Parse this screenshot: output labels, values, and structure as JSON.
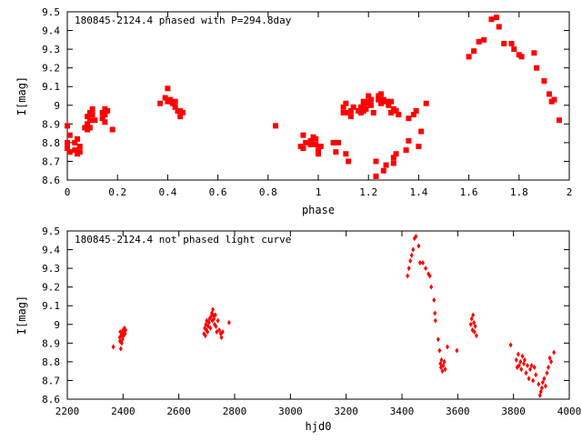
{
  "chart_data": [
    {
      "type": "scatter",
      "title": "180845-2124.4 phased with P=294.8day",
      "xlabel": "phase",
      "ylabel": "I[mag]",
      "xlim": [
        0,
        2
      ],
      "ylim": [
        9.5,
        8.6
      ],
      "y_inverted": true,
      "xticks": [
        0,
        0.2,
        0.4,
        0.6,
        0.8,
        1,
        1.2,
        1.4,
        1.6,
        1.8,
        2
      ],
      "xtick_labels": [
        "0",
        "0.2",
        "0.4",
        "0.6",
        "0.8",
        "1",
        "1.2",
        "1.4",
        "1.6",
        "1.8",
        "2"
      ],
      "yticks": [
        8.6,
        8.7,
        8.8,
        8.9,
        9.0,
        9.1,
        9.2,
        9.3,
        9.4,
        9.5
      ],
      "ytick_labels": [
        "8.6",
        "8.7",
        "8.8",
        "8.9",
        "9",
        "9.1",
        "9.2",
        "9.3",
        "9.4",
        "9.5"
      ],
      "grid": false,
      "marker_color": "#ff0000",
      "points": [
        [
          0.0,
          8.77
        ],
        [
          0.0,
          8.8
        ],
        [
          0.01,
          8.84
        ],
        [
          0.0,
          8.89
        ],
        [
          0.01,
          8.75
        ],
        [
          0.03,
          8.76
        ],
        [
          0.03,
          8.8
        ],
        [
          0.04,
          8.82
        ],
        [
          0.04,
          8.74
        ],
        [
          0.05,
          8.78
        ],
        [
          0.05,
          8.75
        ],
        [
          0.07,
          8.88
        ],
        [
          0.08,
          8.87
        ],
        [
          0.08,
          8.9
        ],
        [
          0.08,
          8.94
        ],
        [
          0.09,
          8.96
        ],
        [
          0.09,
          8.92
        ],
        [
          0.1,
          8.95
        ],
        [
          0.1,
          8.98
        ],
        [
          0.09,
          8.88
        ],
        [
          0.11,
          8.92
        ],
        [
          0.14,
          8.93
        ],
        [
          0.14,
          8.96
        ],
        [
          0.15,
          8.98
        ],
        [
          0.15,
          8.95
        ],
        [
          0.16,
          8.97
        ],
        [
          0.15,
          8.91
        ],
        [
          0.18,
          8.87
        ],
        [
          0.37,
          9.01
        ],
        [
          0.39,
          9.04
        ],
        [
          0.4,
          9.02
        ],
        [
          0.4,
          9.09
        ],
        [
          0.41,
          9.03
        ],
        [
          0.42,
          9.01
        ],
        [
          0.43,
          9.02
        ],
        [
          0.43,
          8.99
        ],
        [
          0.44,
          8.97
        ],
        [
          0.45,
          8.94
        ],
        [
          0.45,
          8.97
        ],
        [
          0.46,
          8.96
        ],
        [
          0.83,
          8.89
        ],
        [
          0.93,
          8.78
        ],
        [
          0.94,
          8.84
        ],
        [
          0.94,
          8.77
        ],
        [
          0.95,
          8.8
        ],
        [
          0.97,
          8.81
        ],
        [
          0.97,
          8.79
        ],
        [
          0.98,
          8.83
        ],
        [
          0.99,
          8.82
        ],
        [
          0.99,
          8.79
        ],
        [
          1.0,
          8.76
        ],
        [
          1.0,
          8.74
        ],
        [
          1.01,
          8.78
        ],
        [
          1.06,
          8.8
        ],
        [
          1.07,
          8.75
        ],
        [
          1.08,
          8.8
        ],
        [
          1.1,
          8.96
        ],
        [
          1.1,
          8.99
        ],
        [
          1.11,
          9.01
        ],
        [
          1.11,
          8.96
        ],
        [
          1.11,
          8.74
        ],
        [
          1.12,
          8.7
        ],
        [
          1.13,
          8.97
        ],
        [
          1.13,
          8.94
        ],
        [
          1.14,
          8.99
        ],
        [
          1.16,
          8.97
        ],
        [
          1.17,
          8.99
        ],
        [
          1.17,
          8.96
        ],
        [
          1.18,
          9.0
        ],
        [
          1.18,
          9.02
        ],
        [
          1.18,
          8.97
        ],
        [
          1.19,
          9.01
        ],
        [
          1.19,
          8.98
        ],
        [
          1.2,
          9.02
        ],
        [
          1.2,
          9.05
        ],
        [
          1.21,
          9.0
        ],
        [
          1.21,
          9.03
        ],
        [
          1.22,
          8.96
        ],
        [
          1.23,
          8.7
        ],
        [
          1.23,
          8.62
        ],
        [
          1.24,
          9.03
        ],
        [
          1.24,
          9.05
        ],
        [
          1.25,
          9.01
        ],
        [
          1.25,
          9.06
        ],
        [
          1.26,
          9.03
        ],
        [
          1.26,
          8.65
        ],
        [
          1.27,
          8.68
        ],
        [
          1.27,
          9.02
        ],
        [
          1.28,
          9.0
        ],
        [
          1.29,
          8.96
        ],
        [
          1.29,
          9.02
        ],
        [
          1.3,
          8.98
        ],
        [
          1.3,
          8.72
        ],
        [
          1.3,
          8.69
        ],
        [
          1.31,
          8.97
        ],
        [
          1.31,
          8.74
        ],
        [
          1.32,
          8.95
        ],
        [
          1.35,
          8.76
        ],
        [
          1.36,
          8.81
        ],
        [
          1.36,
          8.93
        ],
        [
          1.38,
          8.95
        ],
        [
          1.39,
          8.97
        ],
        [
          1.4,
          8.78
        ],
        [
          1.41,
          8.86
        ],
        [
          1.43,
          9.01
        ],
        [
          1.6,
          9.26
        ],
        [
          1.62,
          9.29
        ],
        [
          1.64,
          9.34
        ],
        [
          1.66,
          9.35
        ],
        [
          1.69,
          9.46
        ],
        [
          1.71,
          9.47
        ],
        [
          1.72,
          9.42
        ],
        [
          1.74,
          9.33
        ],
        [
          1.77,
          9.33
        ],
        [
          1.78,
          9.3
        ],
        [
          1.8,
          9.27
        ],
        [
          1.81,
          9.26
        ],
        [
          1.86,
          9.28
        ],
        [
          1.87,
          9.2
        ],
        [
          1.9,
          9.13
        ],
        [
          1.92,
          9.06
        ],
        [
          1.93,
          9.02
        ],
        [
          1.94,
          9.03
        ],
        [
          1.96,
          8.92
        ]
      ]
    },
    {
      "type": "scatter",
      "title": "180845-2124.4 not phased light curve",
      "xlabel": "hjd0",
      "ylabel": "I[mag]",
      "xlim": [
        2200,
        4000
      ],
      "ylim": [
        9.5,
        8.6
      ],
      "y_inverted": true,
      "xticks": [
        2200,
        2400,
        2600,
        2800,
        3000,
        3200,
        3400,
        3600,
        3800,
        4000
      ],
      "xtick_labels": [
        "2200",
        "2400",
        "2600",
        "2800",
        "3000",
        "3200",
        "3400",
        "3600",
        "3800",
        "4000"
      ],
      "yticks": [
        8.6,
        8.7,
        8.8,
        8.9,
        9.0,
        9.1,
        9.2,
        9.3,
        9.4,
        9.5
      ],
      "ytick_labels": [
        "8.6",
        "8.7",
        "8.8",
        "8.9",
        "9",
        "9.1",
        "9.2",
        "9.3",
        "9.4",
        "9.5"
      ],
      "grid": false,
      "marker_color": "#ff0000",
      "points": [
        [
          2365,
          8.88
        ],
        [
          2388,
          8.93
        ],
        [
          2389,
          8.91
        ],
        [
          2390,
          8.96
        ],
        [
          2392,
          8.87
        ],
        [
          2394,
          8.94
        ],
        [
          2395,
          8.9
        ],
        [
          2397,
          8.95
        ],
        [
          2398,
          8.92
        ],
        [
          2400,
          8.97
        ],
        [
          2402,
          8.94
        ],
        [
          2404,
          8.96
        ],
        [
          2405,
          8.98
        ],
        [
          2407,
          8.95
        ],
        [
          2409,
          8.97
        ],
        [
          2690,
          8.95
        ],
        [
          2693,
          8.98
        ],
        [
          2695,
          8.94
        ],
        [
          2697,
          9.0
        ],
        [
          2699,
          8.97
        ],
        [
          2700,
          9.02
        ],
        [
          2703,
          8.96
        ],
        [
          2705,
          8.99
        ],
        [
          2708,
          9.01
        ],
        [
          2710,
          9.03
        ],
        [
          2713,
          8.98
        ],
        [
          2715,
          9.04
        ],
        [
          2718,
          9.06
        ],
        [
          2720,
          9.02
        ],
        [
          2722,
          9.08
        ],
        [
          2724,
          9.05
        ],
        [
          2726,
          9.03
        ],
        [
          2728,
          9.0
        ],
        [
          2731,
          9.05
        ],
        [
          2733,
          8.99
        ],
        [
          2736,
          8.96
        ],
        [
          2740,
          9.02
        ],
        [
          2745,
          8.97
        ],
        [
          2750,
          8.95
        ],
        [
          2753,
          8.93
        ],
        [
          2757,
          8.96
        ],
        [
          2780,
          9.01
        ],
        [
          3420,
          9.26
        ],
        [
          3425,
          9.3
        ],
        [
          3430,
          9.34
        ],
        [
          3435,
          9.37
        ],
        [
          3440,
          9.4
        ],
        [
          3445,
          9.46
        ],
        [
          3450,
          9.47
        ],
        [
          3460,
          9.42
        ],
        [
          3465,
          9.33
        ],
        [
          3475,
          9.33
        ],
        [
          3485,
          9.3
        ],
        [
          3495,
          9.27
        ],
        [
          3500,
          9.26
        ],
        [
          3505,
          9.2
        ],
        [
          3515,
          9.13
        ],
        [
          3518,
          9.06
        ],
        [
          3520,
          9.02
        ],
        [
          3530,
          8.92
        ],
        [
          3535,
          8.86
        ],
        [
          3538,
          8.79
        ],
        [
          3540,
          8.77
        ],
        [
          3542,
          8.81
        ],
        [
          3545,
          8.75
        ],
        [
          3548,
          8.78
        ],
        [
          3552,
          8.8
        ],
        [
          3555,
          8.76
        ],
        [
          3563,
          8.88
        ],
        [
          3597,
          8.86
        ],
        [
          3647,
          9.0
        ],
        [
          3650,
          9.03
        ],
        [
          3653,
          8.97
        ],
        [
          3655,
          9.05
        ],
        [
          3658,
          9.01
        ],
        [
          3660,
          8.96
        ],
        [
          3663,
          8.99
        ],
        [
          3667,
          8.94
        ],
        [
          3790,
          8.89
        ],
        [
          3810,
          8.81
        ],
        [
          3813,
          8.77
        ],
        [
          3817,
          8.84
        ],
        [
          3820,
          8.78
        ],
        [
          3825,
          8.8
        ],
        [
          3828,
          8.76
        ],
        [
          3832,
          8.83
        ],
        [
          3837,
          8.79
        ],
        [
          3840,
          8.81
        ],
        [
          3845,
          8.74
        ],
        [
          3850,
          8.78
        ],
        [
          3855,
          8.71
        ],
        [
          3860,
          8.76
        ],
        [
          3865,
          8.78
        ],
        [
          3870,
          8.7
        ],
        [
          3875,
          8.77
        ],
        [
          3880,
          8.73
        ],
        [
          3890,
          8.68
        ],
        [
          3895,
          8.62
        ],
        [
          3898,
          8.64
        ],
        [
          3902,
          8.66
        ],
        [
          3905,
          8.69
        ],
        [
          3910,
          8.71
        ],
        [
          3915,
          8.67
        ],
        [
          3920,
          8.74
        ],
        [
          3925,
          8.77
        ],
        [
          3930,
          8.82
        ],
        [
          3935,
          8.8
        ],
        [
          3945,
          8.85
        ]
      ]
    }
  ]
}
